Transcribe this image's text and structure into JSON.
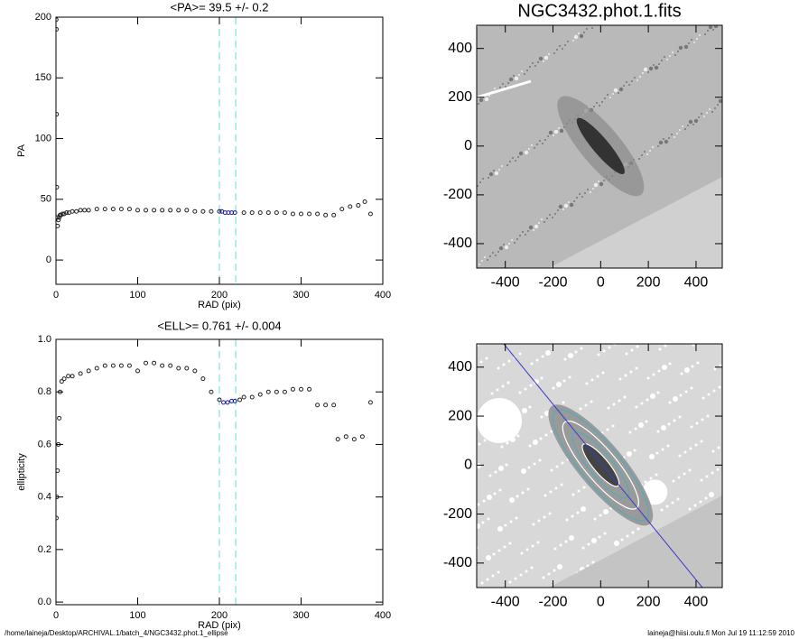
{
  "chart_data": [
    {
      "type": "scatter",
      "title": "<PA>=  39.5 +/-   0.2",
      "x_label": "RAD (pix)",
      "y_label": "PA",
      "xlim": [
        0,
        400
      ],
      "ylim": [
        -20,
        200
      ],
      "xticks": [
        0,
        100,
        200,
        300,
        400
      ],
      "yticks": [
        0,
        50,
        100,
        150,
        200
      ],
      "markers": {
        "color": "#66dddd",
        "x": [
          200,
          220
        ]
      },
      "series": [
        {
          "color": "#222222",
          "x": [
            0.3,
            0.5,
            0.8,
            1,
            1.5,
            2,
            3,
            4,
            5,
            6,
            8,
            10,
            13,
            16,
            20,
            25,
            30,
            35,
            40,
            50,
            60,
            70,
            80,
            90,
            100,
            110,
            120,
            130,
            140,
            150,
            160,
            170,
            180,
            190,
            200,
            230,
            240,
            250,
            260,
            270,
            280,
            290,
            300,
            310,
            320,
            330,
            340,
            350,
            360,
            370,
            378,
            385
          ],
          "values": [
            198,
            190,
            120,
            60,
            35,
            28,
            33,
            35,
            37,
            37,
            38,
            38,
            39,
            39,
            40,
            40,
            41,
            41,
            41,
            42,
            42,
            42,
            42,
            42,
            41,
            41,
            41,
            41,
            41,
            41,
            41,
            40,
            40,
            40,
            40,
            39,
            39,
            39,
            39,
            39,
            39,
            38,
            38,
            38,
            38,
            37,
            37,
            42,
            44,
            45,
            48,
            38
          ]
        },
        {
          "color": "#1a1aa0",
          "x": [
            203,
            207,
            211,
            215,
            219
          ],
          "values": [
            40,
            39,
            39,
            39,
            39
          ]
        }
      ]
    },
    {
      "type": "image",
      "title": "NGC3432.phot.1.fits",
      "xlim": [
        -520,
        510
      ],
      "ylim": [
        -500,
        495
      ],
      "xticks": [
        -400,
        -200,
        0,
        200,
        400
      ],
      "yticks": [
        -400,
        -200,
        0,
        200,
        400
      ]
    },
    {
      "type": "scatter",
      "title": "<ELL>= 0.761 +/-  0.004",
      "x_label": "RAD (pix)",
      "y_label": "ellipticity",
      "xlim": [
        0,
        400
      ],
      "ylim": [
        -0.01,
        1.0
      ],
      "xticks": [
        0,
        100,
        200,
        300,
        400
      ],
      "yticks": [
        {
          "value": 0,
          "label": "0.0"
        },
        {
          "value": 0.2,
          "label": "0.2"
        },
        {
          "value": 0.4,
          "label": "0.4"
        },
        {
          "value": 0.6,
          "label": "0.6"
        },
        {
          "value": 0.8,
          "label": "0.8"
        },
        {
          "value": 1.0,
          "label": "1.0"
        }
      ],
      "markers": {
        "color": "#66dddd",
        "x": [
          200,
          220
        ]
      },
      "series": [
        {
          "color": "#222222",
          "x": [
            0.5,
            1,
            2,
            3,
            4,
            5,
            7,
            10,
            15,
            20,
            30,
            40,
            50,
            60,
            70,
            80,
            90,
            100,
            110,
            120,
            130,
            140,
            150,
            160,
            170,
            180,
            190,
            200,
            225,
            230,
            240,
            250,
            260,
            270,
            280,
            290,
            300,
            310,
            320,
            330,
            340,
            345,
            355,
            365,
            375,
            385
          ],
          "values": [
            0.32,
            0.4,
            0.5,
            0.6,
            0.7,
            0.8,
            0.84,
            0.85,
            0.86,
            0.86,
            0.87,
            0.88,
            0.89,
            0.9,
            0.9,
            0.9,
            0.9,
            0.88,
            0.91,
            0.91,
            0.9,
            0.9,
            0.89,
            0.89,
            0.88,
            0.85,
            0.8,
            0.77,
            0.77,
            0.78,
            0.78,
            0.79,
            0.8,
            0.8,
            0.8,
            0.81,
            0.81,
            0.81,
            0.75,
            0.75,
            0.75,
            0.62,
            0.63,
            0.62,
            0.63,
            0.76
          ]
        },
        {
          "color": "#1a1aa0",
          "x": [
            205,
            210,
            215,
            219
          ],
          "values": [
            0.76,
            0.76,
            0.765,
            0.765
          ]
        }
      ]
    },
    {
      "type": "image",
      "xlim": [
        -520,
        510
      ],
      "ylim": [
        -500,
        495
      ],
      "xticks": [
        -400,
        -200,
        0,
        200,
        400
      ],
      "yticks": [
        -400,
        -200,
        0,
        200,
        400
      ]
    }
  ],
  "footer": {
    "left": "/home/laineja/Desktop/ARCHIVAL.1/batch_4/NGC3432.phot.1_ellipse",
    "right": "laineja@hiisi.oulu.fi  Mon Jul 19 11:12:59 2010"
  }
}
